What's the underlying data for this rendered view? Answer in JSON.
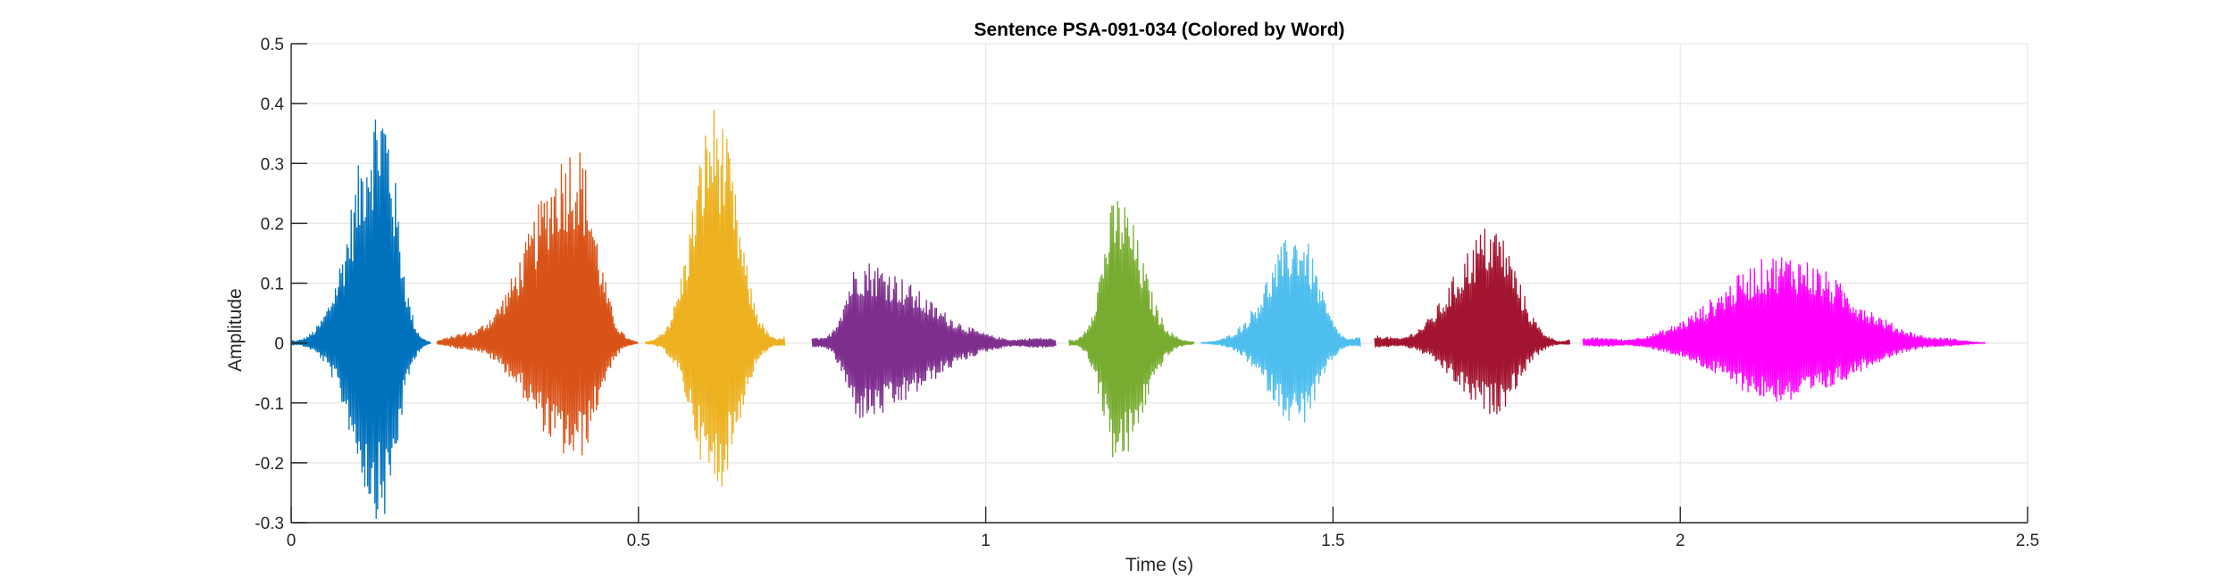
{
  "chart_data": {
    "type": "line",
    "title": "Sentence PSA-091-034 (Colored by Word)",
    "xlabel": "Time (s)",
    "ylabel": "Amplitude",
    "xlim": [
      0,
      2.5
    ],
    "ylim": [
      -0.3,
      0.5
    ],
    "xticks": [
      0,
      0.5,
      1,
      1.5,
      2,
      2.5
    ],
    "xtick_labels": [
      "0",
      "0.5",
      "1",
      "1.5",
      "2",
      "2.5"
    ],
    "yticks": [
      -0.3,
      -0.2,
      -0.1,
      0,
      0.1,
      0.2,
      0.3,
      0.4,
      0.5
    ],
    "ytick_labels": [
      "-0.3",
      "-0.2",
      "-0.1",
      "0",
      "0.1",
      "0.2",
      "0.3",
      "0.4",
      "0.5"
    ],
    "grid": true,
    "legend": "none",
    "segments": [
      {
        "color": "#0072BD",
        "t_start": 0.0,
        "t_end": 0.2,
        "peak_t": 0.13,
        "max": 0.42,
        "min": -0.3
      },
      {
        "color": "#D95319",
        "t_start": 0.21,
        "t_end": 0.5,
        "peak_t": 0.41,
        "max": 0.34,
        "min": -0.2
      },
      {
        "color": "#EDB120",
        "t_start": 0.51,
        "t_end": 0.71,
        "peak_t": 0.61,
        "max": 0.4,
        "min": -0.25
      },
      {
        "color": "#7E2F8E",
        "t_start": 0.75,
        "t_end": 1.1,
        "peak_t": 0.82,
        "max": 0.14,
        "min": -0.13
      },
      {
        "color": "#77AC30",
        "t_start": 1.12,
        "t_end": 1.3,
        "peak_t": 1.19,
        "max": 0.25,
        "min": -0.21
      },
      {
        "color": "#4DBEEE",
        "t_start": 1.31,
        "t_end": 1.54,
        "peak_t": 1.45,
        "max": 0.19,
        "min": -0.14
      },
      {
        "color": "#A2142F",
        "t_start": 1.56,
        "t_end": 1.84,
        "peak_t": 1.73,
        "max": 0.2,
        "min": -0.12
      },
      {
        "color": "#FF00FF",
        "t_start": 1.86,
        "t_end": 2.44,
        "peak_t": 2.15,
        "max": 0.15,
        "min": -0.1
      }
    ]
  }
}
